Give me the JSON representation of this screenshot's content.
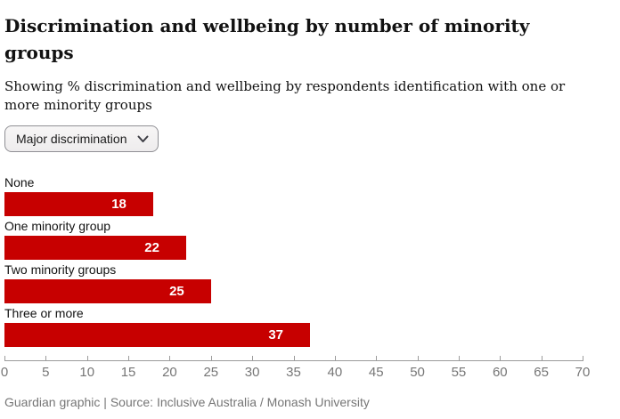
{
  "header": {
    "title": "Discrimination and wellbeing by number of minority groups",
    "subtitle": "Showing % discrimination and wellbeing by respondents identification with one or more minority groups"
  },
  "controls": {
    "metric_dropdown": {
      "selected": "Major discrimination",
      "icon": "chevron-down-icon"
    }
  },
  "chart_data": {
    "type": "bar",
    "orientation": "horizontal",
    "title": "Discrimination and wellbeing by number of minority groups",
    "categories": [
      "None",
      "One minority group",
      "Two minority groups",
      "Three or more"
    ],
    "values": [
      18,
      22,
      25,
      37
    ],
    "xlim": [
      0,
      70
    ],
    "x_ticks": [
      0,
      5,
      10,
      15,
      20,
      25,
      30,
      35,
      40,
      45,
      50,
      55,
      60,
      65,
      70
    ],
    "grid": false,
    "legend": "none",
    "value_labels_inside_bars": true,
    "bar_color": "#c70000",
    "value_label_color": "#ffffff"
  },
  "footer": {
    "credit": "Guardian graphic | Source: Inclusive Australia / Monash University"
  },
  "colors": {
    "bar": "#c70000",
    "text_primary": "#121212",
    "text_muted": "#767676",
    "axis": "#9b9b9b",
    "dropdown_border": "#8f8f94"
  }
}
